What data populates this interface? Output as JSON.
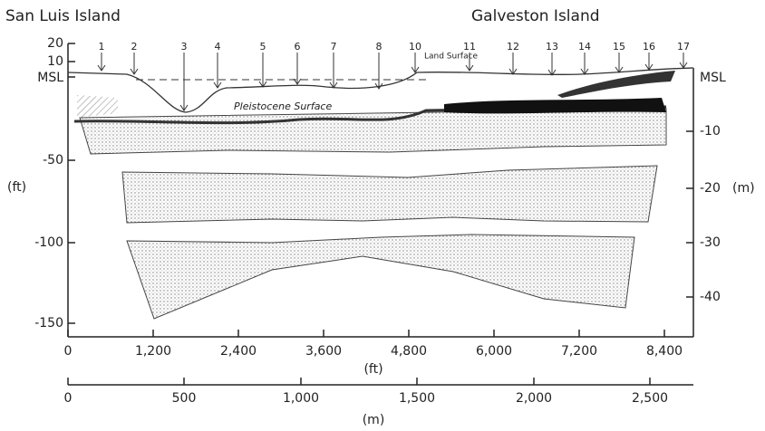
{
  "header": {
    "left_title": "San Luis Island",
    "right_title": "Galveston Island"
  },
  "wells": [
    "1",
    "2",
    "3",
    "4",
    "5",
    "6",
    "7",
    "8",
    "10",
    "11",
    "12",
    "13",
    "14",
    "15",
    "16",
    "17"
  ],
  "annotations": {
    "land_surface": "Land Surface",
    "pleistocene": "Pleistocene Surface",
    "msl_left": "MSL",
    "msl_right": "MSL"
  },
  "left_axis": {
    "unit": "(ft)",
    "ticks": [
      "20",
      "10",
      "-50",
      "-100",
      "-150"
    ]
  },
  "right_axis": {
    "unit": "(m)",
    "ticks": [
      "-10",
      "-20",
      "-30",
      "-40"
    ]
  },
  "bottom_ft_axis": {
    "unit": "(ft)",
    "ticks": [
      "0",
      "1,200",
      "2,400",
      "3,600",
      "4,800",
      "6,000",
      "7,200",
      "8,400"
    ]
  },
  "bottom_m_axis": {
    "unit": "(m)",
    "ticks": [
      "0",
      "500",
      "1,000",
      "1,500",
      "2,000",
      "2,500"
    ]
  }
}
